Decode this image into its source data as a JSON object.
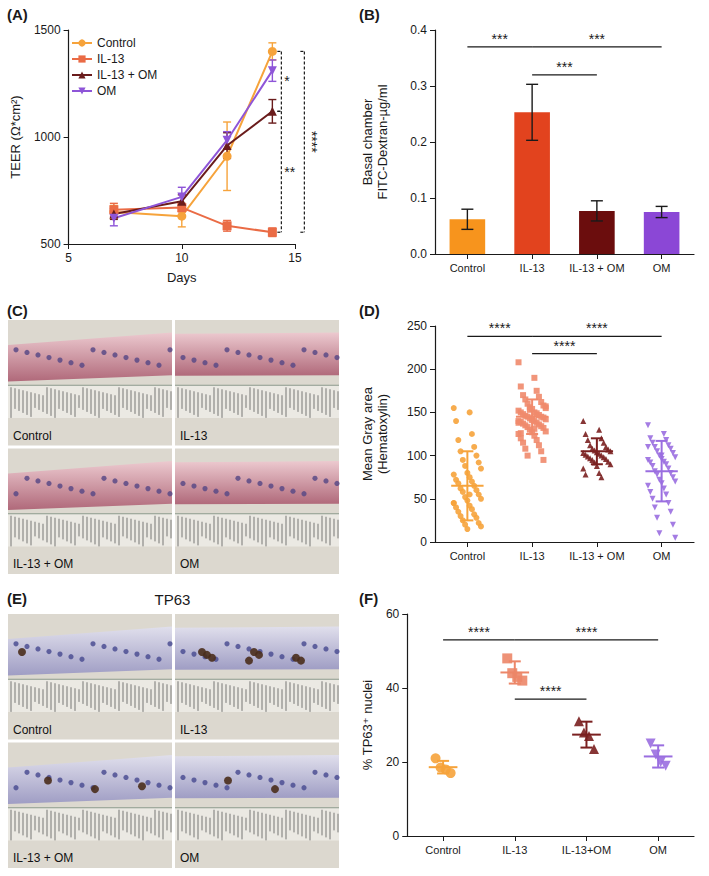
{
  "chart_data": [
    {
      "panel": "(A)",
      "type": "line",
      "xlabel": "Days",
      "ylabel": "TEER (Ω*cm²)",
      "xlim": [
        5,
        15
      ],
      "xticks": [
        5,
        10,
        15
      ],
      "ylim": [
        500,
        1500
      ],
      "yticks": [
        500,
        1000,
        1500
      ],
      "grid": false,
      "legend": "upper left",
      "x": [
        7,
        10,
        12,
        14
      ],
      "series": [
        {
          "name": "Control",
          "color": "#f6a33b",
          "marker": "circle",
          "values": [
            650,
            630,
            910,
            1400
          ],
          "errors": [
            30,
            50,
            160,
            40
          ]
        },
        {
          "name": "IL-13",
          "color": "#ea6b45",
          "marker": "square",
          "values": [
            660,
            670,
            585,
            555
          ],
          "errors": [
            30,
            20,
            25,
            20
          ]
        },
        {
          "name": "IL-13 + OM",
          "color": "#6a1c1c",
          "marker": "triangle",
          "values": [
            640,
            700,
            960,
            1120
          ],
          "errors": [
            25,
            30,
            60,
            55
          ]
        },
        {
          "name": "OM",
          "color": "#8e55d8",
          "marker": "triangle_down",
          "values": [
            620,
            720,
            985,
            1310
          ],
          "errors": [
            35,
            45,
            40,
            50
          ]
        }
      ],
      "annotations": [
        {
          "text": "*",
          "between": [
            "Control",
            "IL-13 + OM"
          ]
        },
        {
          "text": "**",
          "between": [
            "IL-13 + OM",
            "IL-13"
          ]
        },
        {
          "text": "****",
          "between": [
            "Control",
            "IL-13"
          ]
        }
      ]
    },
    {
      "panel": "(B)",
      "type": "bar",
      "ylabel": "Basal chamber\nFITC-Dextran-µg/ml",
      "categories": [
        "Control",
        "IL-13",
        "IL-13 + OM",
        "OM"
      ],
      "values": [
        0.062,
        0.253,
        0.077,
        0.075
      ],
      "errors": [
        0.018,
        0.05,
        0.018,
        0.01
      ],
      "colors": [
        "#f7941d",
        "#e2431e",
        "#6b0d0d",
        "#8b47d6"
      ],
      "ylim": [
        0,
        0.4
      ],
      "yticks": [
        {
          "value": 0,
          "label": "0.0"
        },
        0.1,
        0.2,
        0.3,
        0.4
      ],
      "grid": false,
      "annotations": [
        {
          "text": "***",
          "from": "Control",
          "to": "IL-13",
          "y": 0.37
        },
        {
          "text": "***",
          "from": "IL-13",
          "to": "IL-13 + OM",
          "y": 0.32
        },
        {
          "text": "***",
          "from": "IL-13",
          "to": "OM",
          "y": 0.37
        }
      ]
    },
    {
      "panel": "(C)",
      "type": "micrograph",
      "images": [
        "Control",
        "IL-13",
        "IL-13 + OM",
        "OM"
      ]
    },
    {
      "panel": "(D)",
      "type": "scatter",
      "ylabel": "Mean Gray area\n(Hematoxylin)",
      "categories": [
        "Control",
        "IL-13",
        "IL-13 + OM",
        "OM"
      ],
      "ylim": [
        0,
        250
      ],
      "yticks": [
        0,
        50,
        100,
        150,
        200,
        250
      ],
      "grid": false,
      "groups": [
        {
          "color": "#f6a33b",
          "marker": "circle",
          "mean": 65,
          "sd": 40,
          "values": [
            155,
            150,
            140,
            125,
            118,
            110,
            105,
            100,
            95,
            92,
            88,
            85,
            80,
            78,
            75,
            72,
            70,
            68,
            65,
            62,
            60,
            58,
            55,
            52,
            50,
            48,
            45,
            42,
            40,
            38,
            35,
            32,
            30,
            28,
            25,
            22,
            20,
            18,
            15,
            45,
            55
          ]
        },
        {
          "color": "#f08a6b",
          "marker": "square",
          "mean": 145,
          "sd": 20,
          "values": [
            208,
            190,
            180,
            175,
            170,
            168,
            165,
            162,
            160,
            158,
            156,
            155,
            154,
            152,
            150,
            150,
            149,
            148,
            147,
            146,
            145,
            145,
            144,
            143,
            142,
            141,
            140,
            140,
            139,
            138,
            137,
            136,
            135,
            134,
            133,
            132,
            130,
            128,
            127,
            125,
            123,
            120,
            118,
            115,
            112,
            108,
            105,
            100,
            95,
            153,
            157,
            143,
            138,
            131,
            126
          ]
        },
        {
          "color": "#7a2020",
          "marker": "triangle",
          "mean": 105,
          "sd": 15,
          "values": [
            140,
            130,
            125,
            120,
            118,
            115,
            112,
            110,
            108,
            107,
            106,
            105,
            104,
            103,
            102,
            101,
            100,
            99,
            98,
            97,
            96,
            95,
            93,
            92,
            90,
            88,
            85,
            80,
            78,
            75
          ]
        },
        {
          "color": "#9a6ee0",
          "marker": "triangle_down",
          "mean": 82,
          "sd": 35,
          "values": [
            135,
            125,
            120,
            118,
            115,
            112,
            110,
            108,
            105,
            103,
            100,
            98,
            96,
            95,
            93,
            92,
            90,
            88,
            85,
            82,
            80,
            78,
            75,
            72,
            70,
            68,
            65,
            62,
            58,
            55,
            50,
            45,
            40,
            35,
            28,
            20,
            10,
            5,
            100,
            110
          ]
        }
      ],
      "annotations": [
        {
          "text": "****",
          "from": "Control",
          "to": "IL-13",
          "y": 238
        },
        {
          "text": "****",
          "from": "IL-13",
          "to": "IL-13 + OM",
          "y": 218
        },
        {
          "text": "****",
          "from": "IL-13",
          "to": "OM",
          "y": 238
        }
      ]
    },
    {
      "panel": "(E)",
      "type": "micrograph",
      "title": "TP63",
      "images": [
        "Control",
        "IL-13",
        "IL-13 + OM",
        "OM"
      ]
    },
    {
      "panel": "(F)",
      "type": "scatter",
      "ylabel": "% TP63⁺ nuclei",
      "categories": [
        "Control",
        "IL-13",
        "IL-13+OM",
        "OM"
      ],
      "ylim": [
        0,
        60
      ],
      "yticks": [
        0,
        20,
        40,
        60
      ],
      "grid": false,
      "groups": [
        {
          "color": "#f6a33b",
          "marker": "circle",
          "mean": 18.6,
          "sd": 1.7,
          "values": [
            21,
            18.5,
            18,
            17
          ]
        },
        {
          "color": "#ec8668",
          "marker": "square",
          "mean": 44.2,
          "sd": 3,
          "values": [
            48,
            44,
            43,
            42
          ]
        },
        {
          "color": "#7a2020",
          "marker": "triangle",
          "mean": 27.4,
          "sd": 3.5,
          "values": [
            31,
            28,
            27,
            23.5
          ]
        },
        {
          "color": "#9a6ee0",
          "marker": "triangle_down",
          "mean": 21.5,
          "sd": 3,
          "values": [
            25,
            22,
            20,
            19
          ]
        }
      ],
      "annotations": [
        {
          "text": "****",
          "from": "Control",
          "to": "IL-13",
          "y": 53
        },
        {
          "text": "****",
          "from": "IL-13",
          "to": "IL-13+OM",
          "y": 37
        },
        {
          "text": "****",
          "from": "IL-13",
          "to": "OM",
          "y": 53
        }
      ]
    }
  ]
}
